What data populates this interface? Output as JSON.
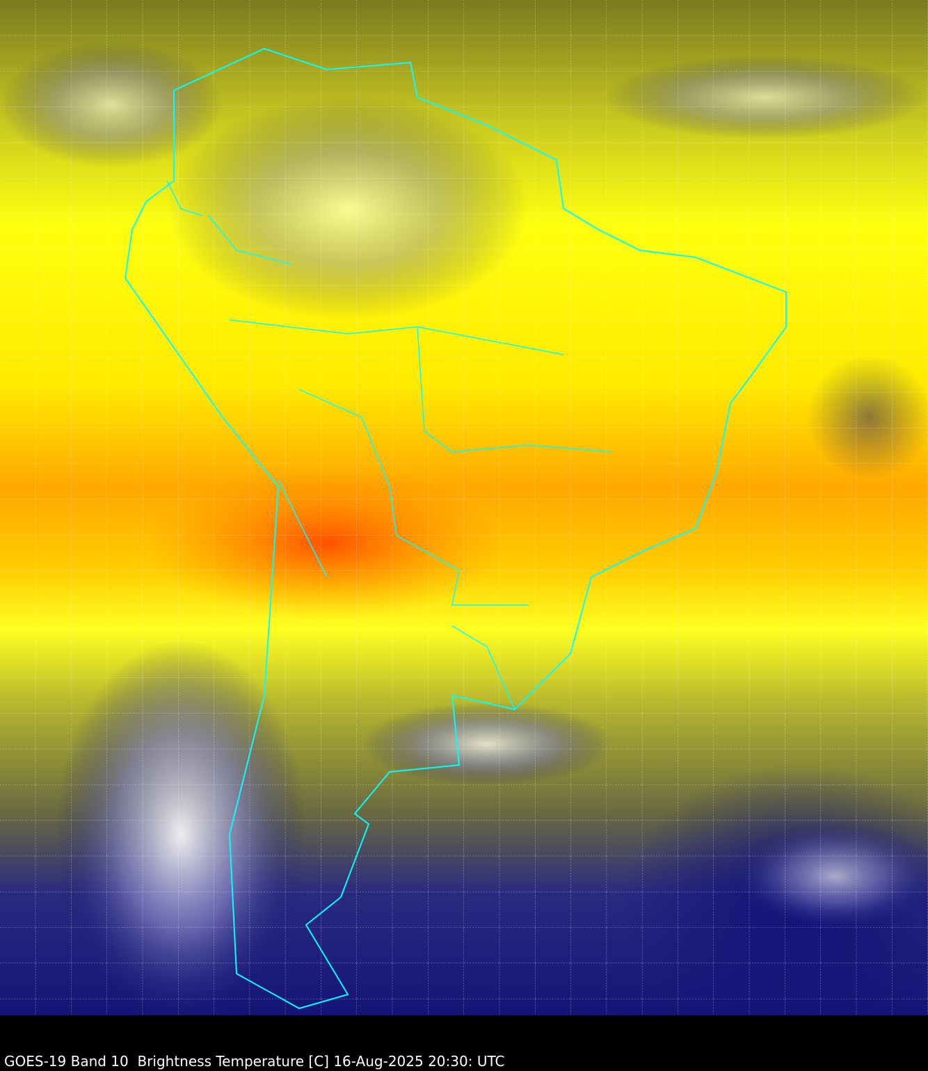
{
  "caption": "GOES-19 Band 10  Brightness Temperature [C] 16-Aug-2025 20:30: UTC",
  "colors": {
    "outline": "#00ffff",
    "grid": "#ffffff",
    "warm": "#ff6a00",
    "mid": "#ffff00",
    "cold": "#10107a"
  }
}
